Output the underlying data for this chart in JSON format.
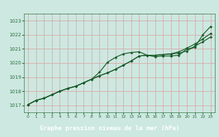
{
  "title": "Graphe pression niveau de la mer (hPa)",
  "bg_color": "#cce8e0",
  "title_bg": "#2d6e3e",
  "title_fg": "#ffffff",
  "grid_color": "#d8a8a8",
  "line_color": "#1a5c2a",
  "xlim": [
    -0.5,
    23.5
  ],
  "ylim": [
    1016.5,
    1023.5
  ],
  "xticks": [
    0,
    1,
    2,
    3,
    4,
    5,
    6,
    7,
    8,
    9,
    10,
    11,
    12,
    13,
    14,
    15,
    16,
    17,
    18,
    19,
    20,
    21,
    22,
    23
  ],
  "yticks": [
    1017,
    1018,
    1019,
    1020,
    1021,
    1022,
    1023
  ],
  "line1_x": [
    0,
    1,
    2,
    3,
    4,
    5,
    6,
    7,
    8,
    9,
    10,
    11,
    12,
    13,
    14,
    15,
    16,
    17,
    18,
    19,
    20,
    21,
    22,
    23
  ],
  "line1_y": [
    1017.05,
    1017.35,
    1017.5,
    1017.75,
    1018.0,
    1018.2,
    1018.35,
    1018.6,
    1018.85,
    1019.35,
    1020.05,
    1020.4,
    1020.65,
    1020.75,
    1020.8,
    1020.55,
    1020.45,
    1020.5,
    1020.5,
    1020.55,
    1021.0,
    1021.1,
    1022.0,
    1022.6
  ],
  "line2_x": [
    0,
    1,
    2,
    3,
    4,
    5,
    6,
    7,
    8,
    9,
    10,
    11,
    12,
    13,
    14,
    15,
    16,
    17,
    18,
    19,
    20,
    21,
    22,
    23
  ],
  "line2_y": [
    1017.05,
    1017.35,
    1017.5,
    1017.75,
    1018.0,
    1018.2,
    1018.35,
    1018.6,
    1018.85,
    1019.1,
    1019.3,
    1019.55,
    1019.85,
    1020.15,
    1020.5,
    1020.55,
    1020.55,
    1020.6,
    1020.65,
    1020.7,
    1020.85,
    1021.2,
    1021.5,
    1021.85
  ],
  "line3_x": [
    0,
    1,
    2,
    3,
    4,
    5,
    6,
    7,
    8,
    9,
    10,
    11,
    12,
    13,
    14,
    15,
    16,
    17,
    18,
    19,
    20,
    21,
    22,
    23
  ],
  "line3_y": [
    1017.05,
    1017.35,
    1017.5,
    1017.75,
    1018.0,
    1018.2,
    1018.35,
    1018.6,
    1018.85,
    1019.1,
    1019.3,
    1019.55,
    1019.85,
    1020.15,
    1020.5,
    1020.55,
    1020.55,
    1020.6,
    1020.65,
    1020.8,
    1021.05,
    1021.35,
    1021.7,
    1022.1
  ]
}
